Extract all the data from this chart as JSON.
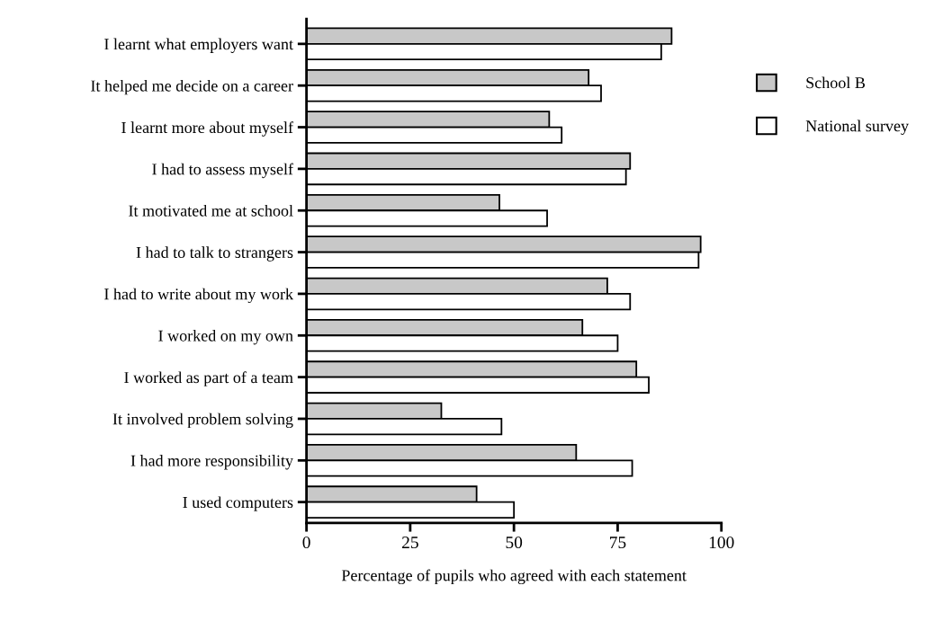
{
  "chart_data": {
    "type": "bar",
    "orientation": "horizontal",
    "xlabel": "Percentage of pupils who agreed with each statement",
    "categories": [
      "I learnt what employers want",
      "It helped me decide on a career",
      "I learnt more about myself",
      "I had to assess myself",
      "It motivated me at school",
      "I had to talk to strangers",
      "I had to write about my work",
      "I worked on my own",
      "I worked as part of a team",
      "It involved problem solving",
      "I had more responsibility",
      "I used computers"
    ],
    "series": [
      {
        "name": "School B",
        "color": "#c8c8c8",
        "values": [
          88,
          68,
          58.5,
          78,
          46.5,
          95,
          72.5,
          66.5,
          79.5,
          32.5,
          65,
          41
        ]
      },
      {
        "name": "National survey",
        "color": "#ffffff",
        "values": [
          85.5,
          71,
          61.5,
          77,
          58,
          94.5,
          78,
          75,
          82.5,
          47,
          78.5,
          50
        ]
      }
    ],
    "xlim": [
      0,
      100
    ],
    "xticks": [
      0,
      25,
      50,
      75,
      100
    ],
    "grid": false,
    "legend": "right"
  }
}
